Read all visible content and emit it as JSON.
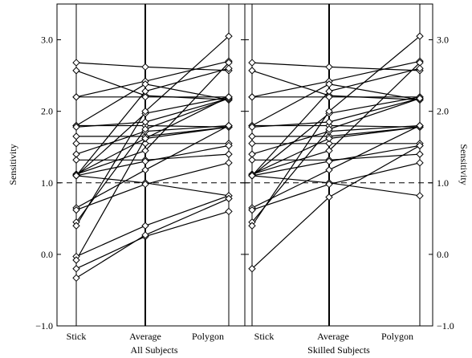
{
  "chart_data": {
    "type": "line",
    "ylabel": "Sensitivity",
    "ylim": [
      -1.0,
      3.5
    ],
    "yticks": [
      -1.0,
      0.0,
      1.0,
      2.0,
      3.0
    ],
    "ytick_labels": [
      "−1.0",
      "0.0",
      "1.0",
      "2.0",
      "3.0"
    ],
    "reference_line": 1.0,
    "grid": false,
    "panels": [
      {
        "label": "All Subjects",
        "categories": [
          "Stick",
          "Average",
          "Polygon"
        ],
        "subjects": [
          [
            2.68,
            2.62,
            2.57
          ],
          [
            2.57,
            2.22,
            2.16
          ],
          [
            2.2,
            2.2,
            2.2
          ],
          [
            2.2,
            2.42,
            2.7
          ],
          [
            1.8,
            2.38,
            2.16
          ],
          [
            1.8,
            1.8,
            1.78
          ],
          [
            1.78,
            1.85,
            2.18
          ],
          [
            1.65,
            1.65,
            1.78
          ],
          [
            1.55,
            1.55,
            1.55
          ],
          [
            1.4,
            1.72,
            1.8
          ],
          [
            1.32,
            1.32,
            1.4
          ],
          [
            1.12,
            1.62,
            1.78
          ],
          [
            1.12,
            1.45,
            2.68
          ],
          [
            1.1,
            1.97,
            2.2
          ],
          [
            1.1,
            1.3,
            1.52
          ],
          [
            1.1,
            1.0,
            0.82
          ],
          [
            1.1,
            2.28,
            2.6
          ],
          [
            0.65,
            1.18,
            1.8
          ],
          [
            0.62,
            0.98,
            1.28
          ],
          [
            0.45,
            1.75,
            2.18
          ],
          [
            0.4,
            2.0,
            3.05
          ],
          [
            -0.03,
            0.4,
            0.82
          ],
          [
            -0.08,
            1.62,
            2.2
          ],
          [
            -0.2,
            0.25,
            0.6
          ],
          [
            -0.33,
            0.27,
            0.78
          ]
        ]
      },
      {
        "label": "Skilled Subjects",
        "categories": [
          "Stick",
          "Average",
          "Polygon"
        ],
        "subjects": [
          [
            2.68,
            2.62,
            2.57
          ],
          [
            2.57,
            2.22,
            2.16
          ],
          [
            2.2,
            2.2,
            2.2
          ],
          [
            2.2,
            2.42,
            2.7
          ],
          [
            1.8,
            2.38,
            2.16
          ],
          [
            1.8,
            1.8,
            1.78
          ],
          [
            1.78,
            1.85,
            2.18
          ],
          [
            1.65,
            1.65,
            1.78
          ],
          [
            1.55,
            1.55,
            1.55
          ],
          [
            1.4,
            1.72,
            1.8
          ],
          [
            1.32,
            1.32,
            1.4
          ],
          [
            1.12,
            1.62,
            1.78
          ],
          [
            1.12,
            1.45,
            2.68
          ],
          [
            1.1,
            1.97,
            2.2
          ],
          [
            1.1,
            1.3,
            1.52
          ],
          [
            1.1,
            1.0,
            0.82
          ],
          [
            1.1,
            2.28,
            2.6
          ],
          [
            0.65,
            1.18,
            1.8
          ],
          [
            0.62,
            0.98,
            1.28
          ],
          [
            0.45,
            1.75,
            2.18
          ],
          [
            0.4,
            2.0,
            3.05
          ],
          [
            -0.2,
            0.8,
            1.52
          ]
        ]
      }
    ]
  }
}
